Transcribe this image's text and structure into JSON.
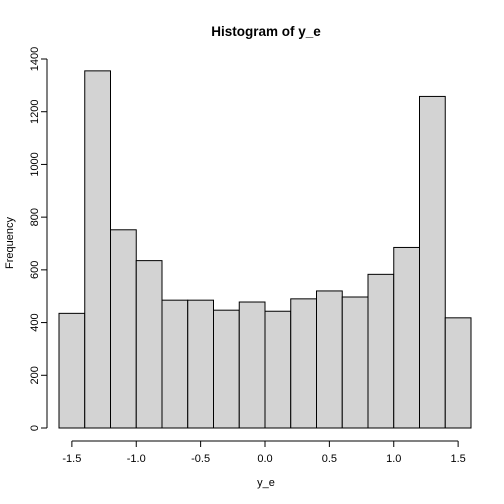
{
  "chart_data": {
    "type": "bar",
    "title": "Histogram of y_e",
    "xlabel": "y_e",
    "ylabel": "Frequency",
    "bin_edges": [
      -1.6,
      -1.4,
      -1.2,
      -1.0,
      -0.8,
      -0.6,
      -0.4,
      -0.2,
      0.0,
      0.2,
      0.4,
      0.6,
      0.8,
      1.0,
      1.2,
      1.4,
      1.6
    ],
    "values": [
      435,
      1355,
      752,
      635,
      485,
      485,
      447,
      478,
      443,
      490,
      520,
      497,
      583,
      685,
      1258,
      418
    ],
    "xlim": [
      -1.6,
      1.6
    ],
    "ylim": [
      0,
      1400
    ],
    "x_ticks": [
      -1.5,
      -1.0,
      -0.5,
      0.0,
      0.5,
      1.0,
      1.5
    ],
    "x_tick_labels": [
      "-1.5",
      "-1.0",
      "-0.5",
      "0.0",
      "0.5",
      "1.0",
      "1.5"
    ],
    "y_ticks": [
      0,
      200,
      400,
      600,
      800,
      1000,
      1200,
      1400
    ],
    "y_tick_labels": [
      "0",
      "200",
      "400",
      "600",
      "800",
      "1000",
      "1200",
      "1400"
    ],
    "bar_color": "#d3d3d3",
    "grid": false,
    "legend": "none"
  }
}
